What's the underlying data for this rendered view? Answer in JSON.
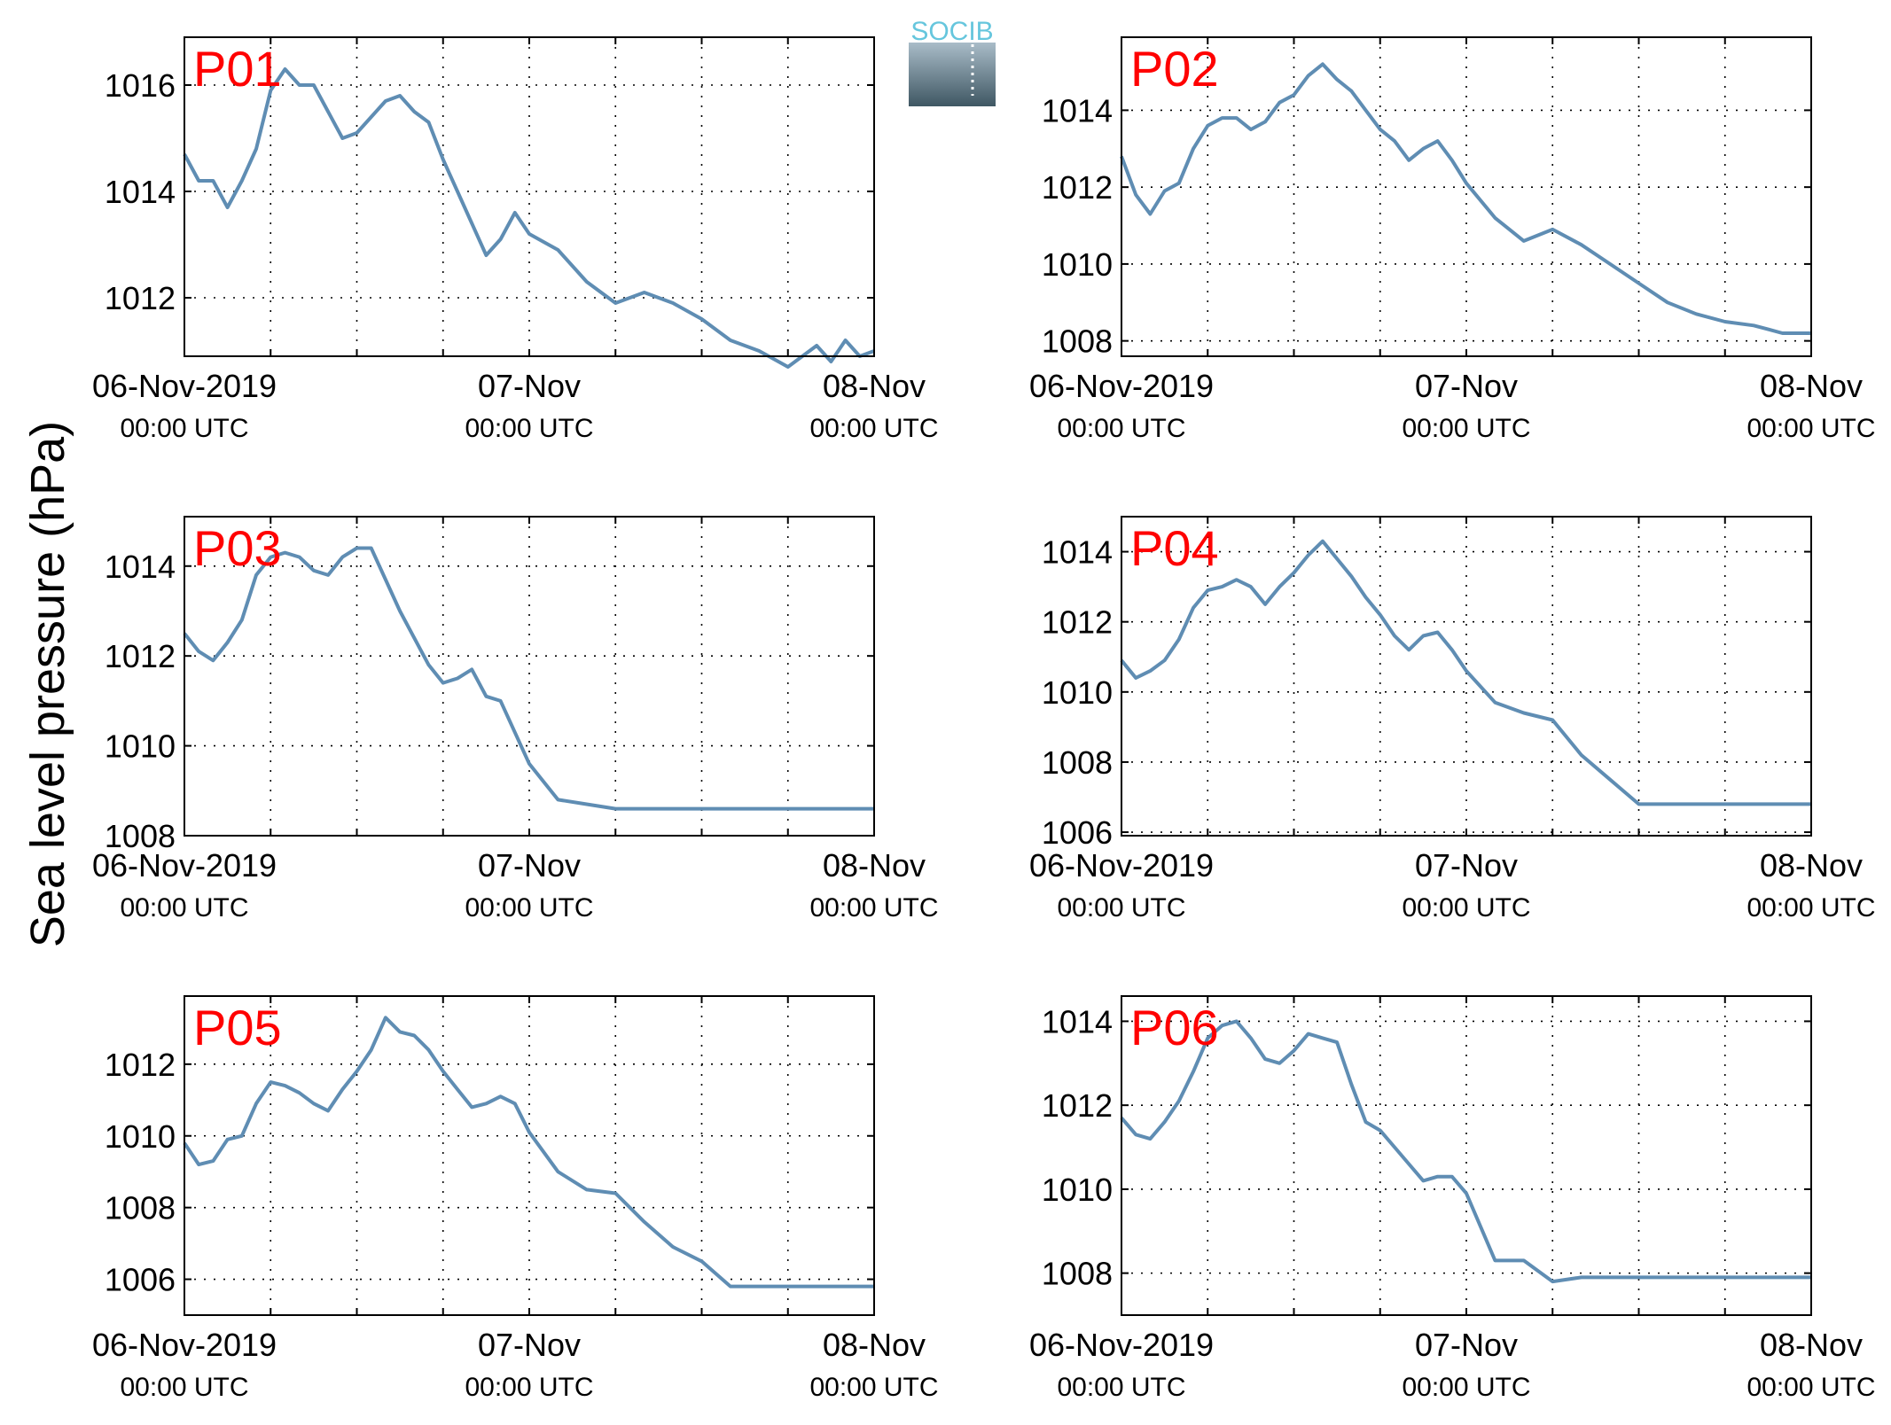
{
  "figure": {
    "ylabel": "Sea level pressure (hPa)",
    "logo_text": "SOCIB",
    "line_color": "#5f8db3",
    "label_color": "#ff0000"
  },
  "chart_data": [
    {
      "type": "line",
      "panel": "P01",
      "ylim": [
        1010.9,
        1016.9
      ],
      "yticks": [
        1012,
        1014,
        1016
      ],
      "x_range": [
        "06-Nov-2019 00:00",
        "08-Nov-2019 00:00"
      ],
      "xticks": [
        {
          "line1": "06-Nov-2019",
          "line2": "00:00 UTC"
        },
        {
          "line1": "07-Nov",
          "line2": "00:00 UTC"
        },
        {
          "line1": "08-Nov",
          "line2": "00:00 UTC"
        }
      ],
      "grid": true,
      "x_hours": [
        0,
        1,
        2,
        3,
        4,
        5,
        6,
        7,
        8,
        9,
        10,
        11,
        12,
        13,
        14,
        15,
        16,
        17,
        18,
        19,
        20,
        21,
        22,
        23,
        24,
        26,
        28,
        30,
        32,
        34,
        36,
        38,
        40,
        42,
        44,
        45,
        46,
        47,
        48
      ],
      "values": [
        1014.7,
        1014.2,
        1014.2,
        1013.7,
        1014.2,
        1014.8,
        1015.9,
        1016.3,
        1016.0,
        1016.0,
        1015.5,
        1015.0,
        1015.1,
        1015.4,
        1015.7,
        1015.8,
        1015.5,
        1015.3,
        1014.6,
        1014.0,
        1013.4,
        1012.8,
        1013.1,
        1013.6,
        1013.2,
        1012.9,
        1012.3,
        1011.9,
        1012.1,
        1011.9,
        1011.6,
        1011.2,
        1011.0,
        1010.7,
        1011.1,
        1010.8,
        1011.2,
        1010.9,
        1011.0
      ]
    },
    {
      "type": "line",
      "panel": "P02",
      "ylim": [
        1007.6,
        1015.9
      ],
      "yticks": [
        1008,
        1010,
        1012,
        1014
      ],
      "x_range": [
        "06-Nov-2019 00:00",
        "08-Nov-2019 00:00"
      ],
      "xticks": [
        {
          "line1": "06-Nov-2019",
          "line2": "00:00 UTC"
        },
        {
          "line1": "07-Nov",
          "line2": "00:00 UTC"
        },
        {
          "line1": "08-Nov",
          "line2": "00:00 UTC"
        }
      ],
      "grid": true,
      "x_hours": [
        0,
        1,
        2,
        3,
        4,
        5,
        6,
        7,
        8,
        9,
        10,
        11,
        12,
        13,
        14,
        15,
        16,
        17,
        18,
        19,
        20,
        21,
        22,
        23,
        24,
        26,
        28,
        30,
        32,
        34,
        36,
        38,
        40,
        42,
        44,
        45,
        46,
        47,
        48
      ],
      "values": [
        1012.8,
        1011.8,
        1011.3,
        1011.9,
        1012.1,
        1013.0,
        1013.6,
        1013.8,
        1013.8,
        1013.5,
        1013.7,
        1014.2,
        1014.4,
        1014.9,
        1015.2,
        1014.8,
        1014.5,
        1014.0,
        1013.5,
        1013.2,
        1012.7,
        1013.0,
        1013.2,
        1012.7,
        1012.1,
        1011.2,
        1010.6,
        1010.9,
        1010.5,
        1010.0,
        1009.5,
        1009.0,
        1008.7,
        1008.5,
        1008.4,
        1008.3,
        1008.2,
        1008.2,
        1008.2
      ]
    },
    {
      "type": "line",
      "panel": "P03",
      "ylim": [
        1008.0,
        1015.1
      ],
      "yticks": [
        1008,
        1010,
        1012,
        1014
      ],
      "x_range": [
        "06-Nov-2019 00:00",
        "08-Nov-2019 00:00"
      ],
      "xticks": [
        {
          "line1": "06-Nov-2019",
          "line2": "00:00 UTC"
        },
        {
          "line1": "07-Nov",
          "line2": "00:00 UTC"
        },
        {
          "line1": "08-Nov",
          "line2": "00:00 UTC"
        }
      ],
      "grid": true,
      "x_hours": [
        0,
        1,
        2,
        3,
        4,
        5,
        6,
        7,
        8,
        9,
        10,
        11,
        12,
        13,
        14,
        15,
        16,
        17,
        18,
        19,
        20,
        21,
        22,
        23,
        24,
        26,
        28,
        30,
        32,
        34,
        36,
        38,
        40,
        42,
        44,
        45,
        46,
        47,
        48
      ],
      "values": [
        1012.5,
        1012.1,
        1011.9,
        1012.3,
        1012.8,
        1013.8,
        1014.2,
        1014.3,
        1014.2,
        1013.9,
        1013.8,
        1014.2,
        1014.4,
        1014.4,
        1013.7,
        1013.0,
        1012.4,
        1011.8,
        1011.4,
        1011.5,
        1011.7,
        1011.1,
        1011.0,
        1010.3,
        1009.6,
        1008.8,
        1008.7,
        1008.6,
        1008.6,
        1008.6,
        1008.6,
        1008.6,
        1008.6,
        1008.6,
        1008.6,
        1008.6,
        1008.6,
        1008.6,
        1008.6
      ]
    },
    {
      "type": "line",
      "panel": "P04",
      "ylim": [
        1005.9,
        1015.0
      ],
      "yticks": [
        1006,
        1008,
        1010,
        1012,
        1014
      ],
      "x_range": [
        "06-Nov-2019 00:00",
        "08-Nov-2019 00:00"
      ],
      "xticks": [
        {
          "line1": "06-Nov-2019",
          "line2": "00:00 UTC"
        },
        {
          "line1": "07-Nov",
          "line2": "00:00 UTC"
        },
        {
          "line1": "08-Nov",
          "line2": "00:00 UTC"
        }
      ],
      "grid": true,
      "x_hours": [
        0,
        1,
        2,
        3,
        4,
        5,
        6,
        7,
        8,
        9,
        10,
        11,
        12,
        13,
        14,
        15,
        16,
        17,
        18,
        19,
        20,
        21,
        22,
        23,
        24,
        26,
        28,
        30,
        32,
        34,
        36,
        38,
        40,
        42,
        44,
        45,
        46,
        47,
        48
      ],
      "values": [
        1010.9,
        1010.4,
        1010.6,
        1010.9,
        1011.5,
        1012.4,
        1012.9,
        1013.0,
        1013.2,
        1013.0,
        1012.5,
        1013.0,
        1013.4,
        1013.9,
        1014.3,
        1013.8,
        1013.3,
        1012.7,
        1012.2,
        1011.6,
        1011.2,
        1011.6,
        1011.7,
        1011.2,
        1010.6,
        1009.7,
        1009.4,
        1009.2,
        1008.2,
        1007.5,
        1006.8,
        1006.8,
        1006.8,
        1006.8,
        1006.8,
        1006.8,
        1006.8,
        1006.8,
        1006.8
      ]
    },
    {
      "type": "line",
      "panel": "P05",
      "ylim": [
        1005.0,
        1013.9
      ],
      "yticks": [
        1006,
        1008,
        1010,
        1012
      ],
      "x_range": [
        "06-Nov-2019 00:00",
        "08-Nov-2019 00:00"
      ],
      "xticks": [
        {
          "line1": "06-Nov-2019",
          "line2": "00:00 UTC"
        },
        {
          "line1": "07-Nov",
          "line2": "00:00 UTC"
        },
        {
          "line1": "08-Nov",
          "line2": "00:00 UTC"
        }
      ],
      "grid": true,
      "x_hours": [
        0,
        1,
        2,
        3,
        4,
        5,
        6,
        7,
        8,
        9,
        10,
        11,
        12,
        13,
        14,
        15,
        16,
        17,
        18,
        19,
        20,
        21,
        22,
        23,
        24,
        26,
        28,
        30,
        32,
        34,
        36,
        38,
        40,
        42,
        44,
        45,
        46,
        47,
        48
      ],
      "values": [
        1009.8,
        1009.2,
        1009.3,
        1009.9,
        1010.0,
        1010.9,
        1011.5,
        1011.4,
        1011.2,
        1010.9,
        1010.7,
        1011.3,
        1011.8,
        1012.4,
        1013.3,
        1012.9,
        1012.8,
        1012.4,
        1011.8,
        1011.3,
        1010.8,
        1010.9,
        1011.1,
        1010.9,
        1010.1,
        1009.0,
        1008.5,
        1008.4,
        1007.6,
        1006.9,
        1006.5,
        1005.8,
        1005.8,
        1005.8,
        1005.8,
        1005.8,
        1005.8,
        1005.8,
        1005.8
      ]
    },
    {
      "type": "line",
      "panel": "P06",
      "ylim": [
        1007.0,
        1014.6
      ],
      "yticks": [
        1008,
        1010,
        1012,
        1014
      ],
      "x_range": [
        "06-Nov-2019 00:00",
        "08-Nov-2019 00:00"
      ],
      "xticks": [
        {
          "line1": "06-Nov-2019",
          "line2": "00:00 UTC"
        },
        {
          "line1": "07-Nov",
          "line2": "00:00 UTC"
        },
        {
          "line1": "08-Nov",
          "line2": "00:00 UTC"
        }
      ],
      "grid": true,
      "x_hours": [
        0,
        1,
        2,
        3,
        4,
        5,
        6,
        7,
        8,
        9,
        10,
        11,
        12,
        13,
        14,
        15,
        16,
        17,
        18,
        19,
        20,
        21,
        22,
        23,
        24,
        26,
        28,
        30,
        32,
        34,
        36,
        38,
        40,
        42,
        44,
        45,
        46,
        47,
        48
      ],
      "values": [
        1011.7,
        1011.3,
        1011.2,
        1011.6,
        1012.1,
        1012.8,
        1013.6,
        1013.9,
        1014.0,
        1013.6,
        1013.1,
        1013.0,
        1013.3,
        1013.7,
        1013.6,
        1013.5,
        1012.5,
        1011.6,
        1011.4,
        1011.0,
        1010.6,
        1010.2,
        1010.3,
        1010.3,
        1009.9,
        1008.3,
        1008.3,
        1007.8,
        1007.9,
        1007.9,
        1007.9,
        1007.9,
        1007.9,
        1007.9,
        1007.9,
        1007.9,
        1007.9,
        1007.9,
        1007.9
      ]
    }
  ]
}
